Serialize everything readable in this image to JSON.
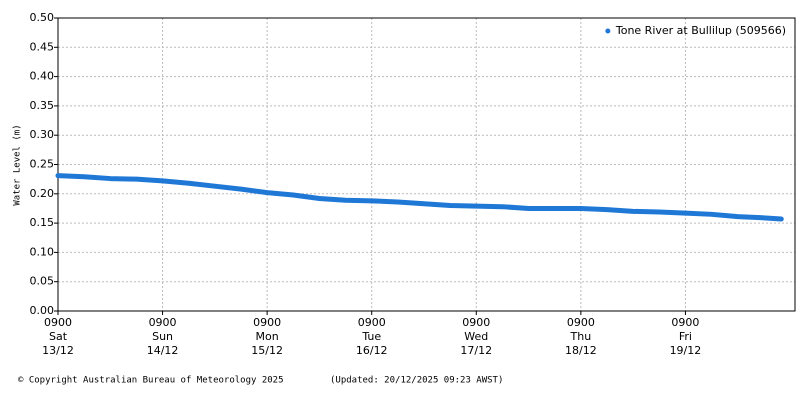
{
  "chart_data": {
    "type": "line",
    "y_label": "Water Level (m)",
    "legend_position": "top-right",
    "grid": true,
    "series": [
      {
        "name": "Tone River at Bullilup (509566)",
        "color": "#1f78d6",
        "x": [
          "13/12 0900",
          "13/12 1500",
          "13/12 2100",
          "14/12 0300",
          "14/12 0900",
          "14/12 1500",
          "14/12 2100",
          "15/12 0300",
          "15/12 0900",
          "15/12 1500",
          "15/12 2100",
          "16/12 0300",
          "16/12 0900",
          "16/12 1500",
          "16/12 2100",
          "17/12 0300",
          "17/12 0900",
          "17/12 1500",
          "17/12 2100",
          "18/12 0300",
          "18/12 0900",
          "18/12 1500",
          "18/12 2100",
          "19/12 0300",
          "19/12 0900",
          "19/12 1500",
          "19/12 2100",
          "20/12 0300",
          "20/12 0700"
        ],
        "values": [
          0.231,
          0.229,
          0.226,
          0.225,
          0.222,
          0.218,
          0.213,
          0.208,
          0.202,
          0.198,
          0.192,
          0.189,
          0.188,
          0.186,
          0.183,
          0.18,
          0.179,
          0.178,
          0.175,
          0.175,
          0.175,
          0.173,
          0.17,
          0.169,
          0.167,
          0.165,
          0.161,
          0.159,
          0.157
        ]
      }
    ],
    "xlim": [
      "13/12 0900",
      "20/12 0900"
    ],
    "xticks": [
      {
        "value": "13/12 0900",
        "label": [
          "0900",
          "Sat",
          "13/12"
        ]
      },
      {
        "value": "14/12 0900",
        "label": [
          "0900",
          "Sun",
          "14/12"
        ]
      },
      {
        "value": "15/12 0900",
        "label": [
          "0900",
          "Mon",
          "15/12"
        ]
      },
      {
        "value": "16/12 0900",
        "label": [
          "0900",
          "Tue",
          "16/12"
        ]
      },
      {
        "value": "17/12 0900",
        "label": [
          "0900",
          "Wed",
          "17/12"
        ]
      },
      {
        "value": "18/12 0900",
        "label": [
          "0900",
          "Thu",
          "18/12"
        ]
      },
      {
        "value": "19/12 0900",
        "label": [
          "0900",
          "Fri",
          "19/12"
        ]
      }
    ],
    "ylim": [
      0,
      0.5
    ],
    "yticks": [
      {
        "value": 0,
        "label": "0.00"
      },
      {
        "value": 0.05,
        "label": "0.05"
      },
      {
        "value": 0.1,
        "label": "0.10"
      },
      {
        "value": 0.15,
        "label": "0.15"
      },
      {
        "value": 0.2,
        "label": "0.20"
      },
      {
        "value": 0.25,
        "label": "0.25"
      },
      {
        "value": 0.3,
        "label": "0.30"
      },
      {
        "value": 0.35,
        "label": "0.35"
      },
      {
        "value": 0.4,
        "label": "0.40"
      },
      {
        "value": 0.45,
        "label": "0.45"
      },
      {
        "value": 0.5,
        "label": "0.50"
      }
    ],
    "footer_left": "© Copyright Australian Bureau of Meteorology 2025",
    "footer_right": "(Updated: 20/12/2025 09:23 AWST)"
  }
}
